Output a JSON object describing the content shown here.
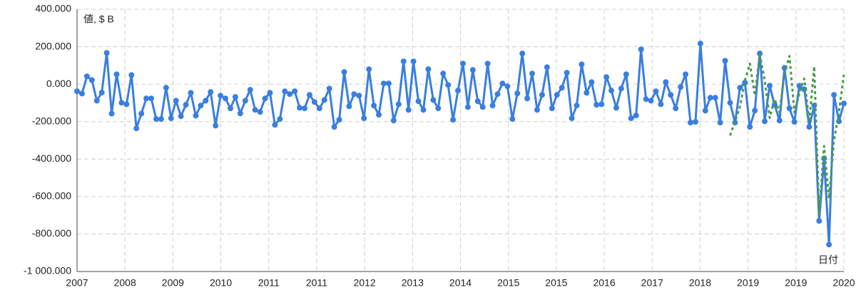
{
  "chart_data": {
    "type": "line",
    "y_axis_label": "値, $ B",
    "x_axis_label": "日付",
    "x_labels": [
      "2007",
      "2008",
      "2009",
      "2010",
      "2011",
      "2011",
      "2012",
      "2013",
      "2014",
      "2015",
      "2015",
      "2016",
      "2017",
      "2018",
      "2019",
      "2019",
      "2020"
    ],
    "ylim": [
      -1000,
      400
    ],
    "yticks": [
      {
        "value": 400,
        "label": "400.000"
      },
      {
        "value": 200,
        "label": "200.000"
      },
      {
        "value": 0,
        "label": "0.000"
      },
      {
        "value": -200,
        "label": "-200.000"
      },
      {
        "value": -400,
        "label": "-400.000"
      },
      {
        "value": -600,
        "label": "-600.000"
      },
      {
        "value": -800,
        "label": "-800.000"
      },
      {
        "value": -1000,
        "label": "-1 000.000"
      }
    ],
    "grid": true,
    "series": [
      {
        "color": "#3a7ee0",
        "style": "solid",
        "markers": true,
        "values": [
          -38,
          -50,
          42,
          22,
          -88,
          -45,
          167,
          -157,
          53,
          -99,
          -107,
          49,
          -236,
          -157,
          -76,
          -76,
          -186,
          -186,
          -19,
          -182,
          -88,
          -171,
          -110,
          -46,
          -168,
          -114,
          -88,
          -42,
          -221,
          -61,
          -76,
          -129,
          -68,
          -156,
          -88,
          -30,
          -137,
          -148,
          -76,
          -46,
          -217,
          -186,
          -38,
          -53,
          -38,
          -126,
          -129,
          -57,
          -95,
          -129,
          -84,
          -23,
          -228,
          -190,
          65,
          -118,
          -53,
          -61,
          -182,
          80,
          -114,
          -163,
          4,
          4,
          -194,
          -107,
          122,
          -137,
          122,
          -91,
          -137,
          80,
          -84,
          -129,
          57,
          -4,
          -190,
          -34,
          110,
          -122,
          76,
          -91,
          -122,
          110,
          -114,
          -53,
          4,
          -11,
          -186,
          -49,
          164,
          -76,
          57,
          -137,
          -57,
          91,
          -129,
          -57,
          -19,
          61,
          -182,
          -114,
          106,
          -46,
          11,
          -110,
          -107,
          38,
          -34,
          -126,
          -23,
          53,
          -182,
          -167,
          186,
          -80,
          -88,
          -38,
          -107,
          11,
          -57,
          -129,
          -15,
          53,
          -205,
          -201,
          217,
          -141,
          -72,
          -72,
          -205,
          125,
          -99,
          -205,
          -19,
          8,
          -228,
          -141,
          164,
          -198,
          -8,
          -110,
          -194,
          87,
          -129,
          -201,
          -8,
          -27,
          -228,
          -114,
          -730,
          -396,
          -856,
          -57,
          -198,
          -103
        ]
      },
      {
        "color": "#4a9a4a",
        "style": "dotted",
        "markers": false,
        "values": [
          null,
          null,
          null,
          null,
          null,
          null,
          null,
          null,
          null,
          null,
          null,
          null,
          null,
          null,
          null,
          null,
          null,
          null,
          null,
          null,
          null,
          null,
          null,
          null,
          null,
          null,
          null,
          null,
          null,
          null,
          null,
          null,
          null,
          null,
          null,
          null,
          null,
          null,
          null,
          null,
          null,
          null,
          null,
          null,
          null,
          null,
          null,
          null,
          null,
          null,
          null,
          null,
          null,
          null,
          null,
          null,
          null,
          null,
          null,
          null,
          null,
          null,
          null,
          null,
          null,
          null,
          null,
          null,
          null,
          null,
          null,
          null,
          null,
          null,
          null,
          null,
          null,
          null,
          null,
          null,
          null,
          null,
          null,
          null,
          null,
          null,
          null,
          null,
          null,
          null,
          null,
          null,
          null,
          null,
          null,
          null,
          null,
          null,
          null,
          null,
          null,
          null,
          null,
          null,
          null,
          null,
          null,
          null,
          null,
          null,
          null,
          null,
          null,
          null,
          null,
          null,
          null,
          null,
          null,
          null,
          null,
          null,
          null,
          null,
          null,
          null,
          null,
          null,
          null,
          null,
          null,
          null,
          -274,
          -200,
          -120,
          20,
          110,
          -60,
          160,
          20,
          -180,
          -80,
          -150,
          60,
          150,
          -150,
          -50,
          30,
          -200,
          95,
          -690,
          -330,
          -610,
          -300,
          -150,
          50
        ]
      }
    ]
  }
}
